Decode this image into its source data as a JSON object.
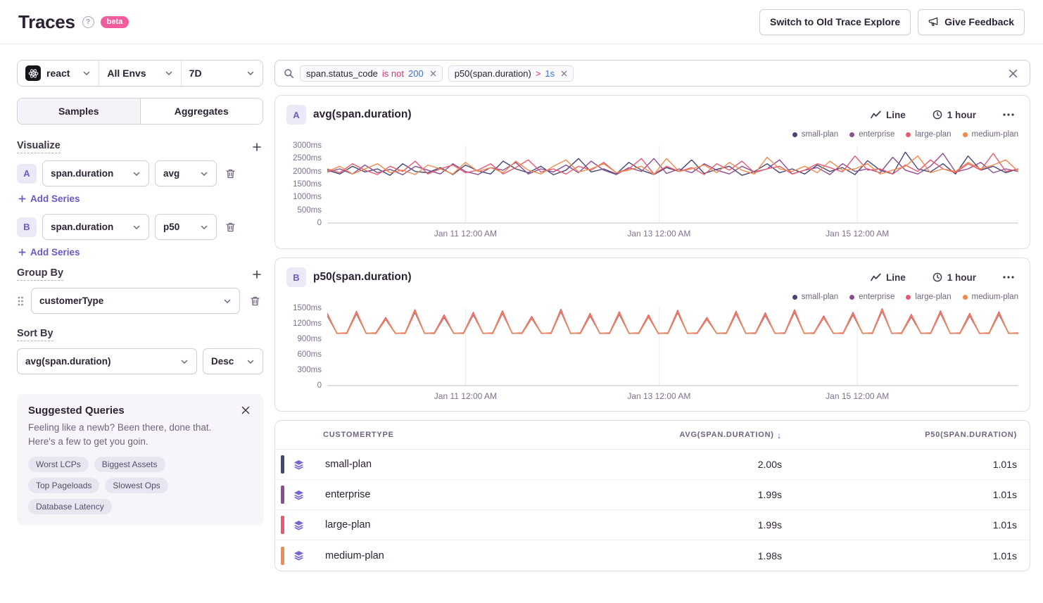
{
  "header": {
    "title": "Traces",
    "help_icon": "?",
    "beta": "beta",
    "switch_button": "Switch to Old Trace Explore",
    "feedback_button": "Give Feedback"
  },
  "filters": {
    "project": "react",
    "env": "All Envs",
    "range": "7D"
  },
  "tabs": {
    "samples": "Samples",
    "aggregates": "Aggregates"
  },
  "visualize": {
    "heading": "Visualize",
    "add_series": "Add Series",
    "series": [
      {
        "badge": "A",
        "field": "span.duration",
        "agg": "avg"
      },
      {
        "badge": "B",
        "field": "span.duration",
        "agg": "p50"
      }
    ]
  },
  "group_by": {
    "heading": "Group By",
    "value": "customerType"
  },
  "sort_by": {
    "heading": "Sort By",
    "field": "avg(span.duration)",
    "dir": "Desc"
  },
  "suggested": {
    "title": "Suggested Queries",
    "body": "Feeling like a newb? Been there, done that. Here's a few to get you goin.",
    "pills": [
      "Worst LCPs",
      "Biggest Assets",
      "Top Pageloads",
      "Slowest Ops",
      "Database Latency"
    ]
  },
  "search": {
    "tokens": [
      {
        "key": "span.status_code",
        "op": "is not",
        "value": "200"
      },
      {
        "key": "p50(span.duration)",
        "op": ">",
        "value": "1s"
      }
    ]
  },
  "palette": {
    "small-plan": "#444674",
    "enterprise": "#8d4c93",
    "large-plan": "#e8596f",
    "medium-plan": "#f38a4d"
  },
  "chart_data": [
    {
      "type": "line",
      "id": "A",
      "title": "avg(span.duration)",
      "display": "Line",
      "interval": "1 hour",
      "ylim": [
        0,
        3000
      ],
      "yticks": [
        0,
        500,
        1000,
        1500,
        2000,
        2500,
        3000
      ],
      "ytick_unit": "ms",
      "grid": "vertical-only",
      "legend_position": "top-right",
      "xticks": [
        {
          "label": "Jan 11 12:00 AM",
          "pos": 0.2
        },
        {
          "label": "Jan 13 12:00 AM",
          "pos": 0.48
        },
        {
          "label": "Jan 15 12:00 AM",
          "pos": 0.767
        }
      ],
      "series": [
        {
          "name": "small-plan",
          "color": "#444674",
          "values": [
            2050,
            1900,
            2200,
            1980,
            2100,
            1850,
            2300,
            2000,
            1950,
            2150,
            1880,
            2250,
            2020,
            1900,
            2400,
            2100,
            1950,
            2200,
            1870,
            2050,
            2500,
            1980,
            2100,
            1900,
            2350,
            2050,
            1880,
            2150,
            2000,
            2450,
            1920,
            2080,
            2200,
            1850,
            2000,
            2300,
            1950,
            2100,
            1900,
            2250,
            2000,
            2150,
            1880,
            2420,
            2050,
            1900,
            2750,
            2100,
            1980,
            2300,
            1900,
            2600,
            2050,
            2200,
            1950,
            2100
          ]
        },
        {
          "name": "enterprise",
          "color": "#8d4c93",
          "values": [
            1980,
            2100,
            1900,
            2250,
            1950,
            2080,
            1870,
            2200,
            2050,
            1900,
            2300,
            2000,
            1880,
            2150,
            2050,
            2350,
            1900,
            2100,
            1980,
            2250,
            1950,
            2400,
            2050,
            1880,
            2150,
            2000,
            2500,
            1920,
            2100,
            1950,
            2300,
            2050,
            1900,
            2200,
            1980,
            2100,
            2450,
            1900,
            2050,
            2150,
            1880,
            2300,
            2000,
            2100,
            1950,
            2550,
            2050,
            1900,
            2200,
            2700,
            1980,
            2100,
            2350,
            1950,
            2100,
            2000
          ]
        },
        {
          "name": "large-plan",
          "color": "#e8596f",
          "values": [
            2100,
            1950,
            2300,
            2050,
            1880,
            2200,
            2000,
            2400,
            1900,
            2100,
            2250,
            1950,
            2050,
            2300,
            1900,
            2150,
            2450,
            1980,
            2100,
            1900,
            2200,
            2050,
            2350,
            1950,
            2100,
            2500,
            1900,
            2200,
            2000,
            2150,
            1880,
            2300,
            2050,
            2400,
            1950,
            2100,
            2200,
            1900,
            2050,
            2300,
            2150,
            1980,
            2600,
            2050,
            2100,
            1900,
            2250,
            2000,
            2450,
            2100,
            1950,
            2300,
            2050,
            2700,
            2000,
            2100
          ]
        },
        {
          "name": "medium-plan",
          "color": "#f38a4d",
          "values": [
            2000,
            2200,
            1900,
            2100,
            2300,
            1950,
            2050,
            1880,
            2250,
            2100,
            1900,
            2350,
            2000,
            2150,
            1950,
            2400,
            2050,
            1900,
            2200,
            2450,
            1980,
            2100,
            2300,
            1950,
            2050,
            2200,
            1880,
            2500,
            2000,
            2100,
            2250,
            1950,
            2350,
            2050,
            1900,
            2550,
            2100,
            2000,
            2200,
            1950,
            2400,
            2050,
            2100,
            2300,
            1900,
            2050,
            2200,
            2600,
            1950,
            2100,
            2000,
            2350,
            2100,
            2250,
            2450,
            2000
          ]
        }
      ]
    },
    {
      "type": "line",
      "id": "B",
      "title": "p50(span.duration)",
      "display": "Line",
      "interval": "1 hour",
      "ylim": [
        0,
        1500
      ],
      "yticks": [
        0,
        300,
        600,
        900,
        1200,
        1500
      ],
      "ytick_unit": "ms",
      "grid": "vertical-only",
      "legend_position": "top-right",
      "xticks": [
        {
          "label": "Jan 11 12:00 AM",
          "pos": 0.2
        },
        {
          "label": "Jan 13 12:00 AM",
          "pos": 0.48
        },
        {
          "label": "Jan 15 12:00 AM",
          "pos": 0.767
        }
      ],
      "series": [
        {
          "name": "small-plan",
          "color": "#444674",
          "values": [
            1380,
            1010,
            1020,
            1420,
            1010,
            1020,
            1300,
            1010,
            1020,
            1450,
            1010,
            1020,
            1350,
            1010,
            1020,
            1400,
            1010,
            1020,
            1430,
            1010,
            1020,
            1320,
            1010,
            1020,
            1460,
            1010,
            1020,
            1380,
            1010,
            1020,
            1410,
            1010,
            1020,
            1350,
            1010,
            1020,
            1440,
            1010,
            1020,
            1300,
            1010,
            1020,
            1420,
            1010,
            1020,
            1390,
            1010,
            1020,
            1450,
            1010,
            1020,
            1330,
            1010,
            1020,
            1400,
            1010,
            1020,
            1470,
            1010,
            1020,
            1360,
            1010,
            1020,
            1430,
            1010,
            1020,
            1380,
            1010,
            1020,
            1410,
            1010,
            1020
          ]
        },
        {
          "name": "enterprise",
          "color": "#8d4c93",
          "values": [
            1350,
            1015,
            1008,
            1390,
            1015,
            1008,
            1280,
            1015,
            1008,
            1420,
            1015,
            1008,
            1320,
            1015,
            1008,
            1370,
            1015,
            1008,
            1400,
            1015,
            1008,
            1300,
            1015,
            1008,
            1430,
            1015,
            1008,
            1350,
            1015,
            1008,
            1380,
            1015,
            1008,
            1330,
            1015,
            1008,
            1410,
            1015,
            1008,
            1280,
            1015,
            1008,
            1390,
            1015,
            1008,
            1360,
            1015,
            1008,
            1420,
            1015,
            1008,
            1310,
            1015,
            1008,
            1370,
            1015,
            1008,
            1440,
            1015,
            1008,
            1330,
            1015,
            1008,
            1400,
            1015,
            1008,
            1350,
            1015,
            1008,
            1380,
            1015,
            1008
          ]
        },
        {
          "name": "large-plan",
          "color": "#e8596f",
          "values": [
            1400,
            1012,
            1022,
            1440,
            1012,
            1022,
            1320,
            1012,
            1022,
            1470,
            1012,
            1022,
            1370,
            1012,
            1022,
            1420,
            1012,
            1022,
            1450,
            1012,
            1022,
            1340,
            1012,
            1022,
            1480,
            1012,
            1022,
            1400,
            1012,
            1022,
            1430,
            1012,
            1022,
            1370,
            1012,
            1022,
            1460,
            1012,
            1022,
            1320,
            1012,
            1022,
            1440,
            1012,
            1022,
            1410,
            1012,
            1022,
            1470,
            1012,
            1022,
            1350,
            1012,
            1022,
            1420,
            1012,
            1022,
            1490,
            1012,
            1022,
            1380,
            1012,
            1022,
            1450,
            1012,
            1022,
            1400,
            1012,
            1022,
            1430,
            1012,
            1022
          ]
        },
        {
          "name": "medium-plan",
          "color": "#f38a4d",
          "values": [
            1370,
            1018,
            1010,
            1410,
            1018,
            1010,
            1290,
            1018,
            1010,
            1440,
            1018,
            1010,
            1340,
            1018,
            1010,
            1390,
            1018,
            1010,
            1420,
            1018,
            1010,
            1310,
            1018,
            1010,
            1450,
            1018,
            1010,
            1370,
            1018,
            1010,
            1400,
            1018,
            1010,
            1340,
            1018,
            1010,
            1430,
            1018,
            1010,
            1290,
            1018,
            1010,
            1410,
            1018,
            1010,
            1380,
            1018,
            1010,
            1440,
            1018,
            1010,
            1320,
            1018,
            1010,
            1390,
            1018,
            1010,
            1460,
            1018,
            1010,
            1350,
            1018,
            1010,
            1420,
            1018,
            1010,
            1370,
            1018,
            1010,
            1400,
            1018,
            1010
          ]
        }
      ]
    }
  ],
  "table": {
    "sort_indicator": "↓",
    "columns": [
      {
        "label": "customerType",
        "align": "left"
      },
      {
        "label": "avg(span.duration)",
        "align": "right",
        "sorted": "desc"
      },
      {
        "label": "p50(span.duration)",
        "align": "right"
      }
    ],
    "rows": [
      {
        "name": "small-plan",
        "color": "#444674",
        "avg": "2.00s",
        "p50": "1.01s"
      },
      {
        "name": "enterprise",
        "color": "#8d4c93",
        "avg": "1.99s",
        "p50": "1.01s"
      },
      {
        "name": "large-plan",
        "color": "#e8596f",
        "avg": "1.99s",
        "p50": "1.01s"
      },
      {
        "name": "medium-plan",
        "color": "#f38a4d",
        "avg": "1.98s",
        "p50": "1.01s"
      }
    ]
  }
}
